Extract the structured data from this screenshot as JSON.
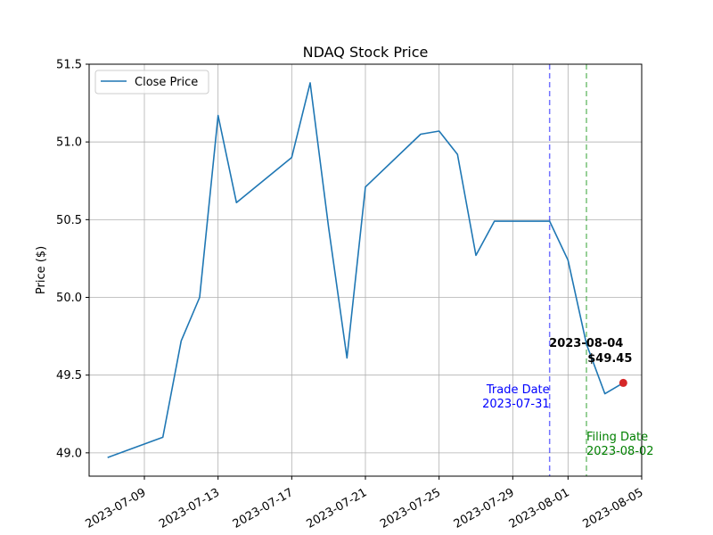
{
  "chart_data": {
    "type": "line",
    "title": "NDAQ Stock Price",
    "xlabel": "",
    "ylabel": "Price ($)",
    "x_type": "date",
    "xlim": [
      "2023-07-06",
      "2023-08-05"
    ],
    "ylim": [
      48.85,
      51.5
    ],
    "grid": true,
    "legend_position": "upper left",
    "x_ticks": [
      "2023-07-09",
      "2023-07-13",
      "2023-07-17",
      "2023-07-21",
      "2023-07-25",
      "2023-07-29",
      "2023-08-01",
      "2023-08-05"
    ],
    "y_ticks": [
      49.0,
      49.5,
      50.0,
      50.5,
      51.0,
      51.5
    ],
    "y_tick_labels": [
      "49.0",
      "49.5",
      "50.0",
      "50.5",
      "51.0",
      "51.5"
    ],
    "series": [
      {
        "name": "Close Price",
        "color": "#1f77b4",
        "points": [
          {
            "x": "2023-07-07",
            "y": 48.97
          },
          {
            "x": "2023-07-10",
            "y": 49.1
          },
          {
            "x": "2023-07-11",
            "y": 49.72
          },
          {
            "x": "2023-07-12",
            "y": 50.0
          },
          {
            "x": "2023-07-13",
            "y": 51.17
          },
          {
            "x": "2023-07-14",
            "y": 50.61
          },
          {
            "x": "2023-07-17",
            "y": 50.9
          },
          {
            "x": "2023-07-18",
            "y": 51.38
          },
          {
            "x": "2023-07-19",
            "y": 50.45
          },
          {
            "x": "2023-07-20",
            "y": 49.61
          },
          {
            "x": "2023-07-21",
            "y": 50.71
          },
          {
            "x": "2023-07-24",
            "y": 51.05
          },
          {
            "x": "2023-07-25",
            "y": 51.07
          },
          {
            "x": "2023-07-26",
            "y": 50.92
          },
          {
            "x": "2023-07-27",
            "y": 50.27
          },
          {
            "x": "2023-07-28",
            "y": 50.49
          },
          {
            "x": "2023-07-31",
            "y": 50.49
          },
          {
            "x": "2023-08-01",
            "y": 50.24
          },
          {
            "x": "2023-08-02",
            "y": 49.7
          },
          {
            "x": "2023-08-03",
            "y": 49.38
          },
          {
            "x": "2023-08-04",
            "y": 49.45
          }
        ]
      }
    ],
    "vlines": [
      {
        "x": "2023-07-31",
        "label_line1": "Trade Date",
        "label_line2": "2023-07-31",
        "color": "#0000ff",
        "text_color": "#0000ff"
      },
      {
        "x": "2023-08-02",
        "label_line1": "Filing Date",
        "label_line2": "2023-08-02",
        "color": "#2ca02c",
        "text_color": "#008000"
      }
    ],
    "highlight": {
      "x": "2023-08-04",
      "y": 49.45,
      "color": "#d62728",
      "label_line1": "2023-08-04",
      "label_line2": "$49.45"
    }
  }
}
